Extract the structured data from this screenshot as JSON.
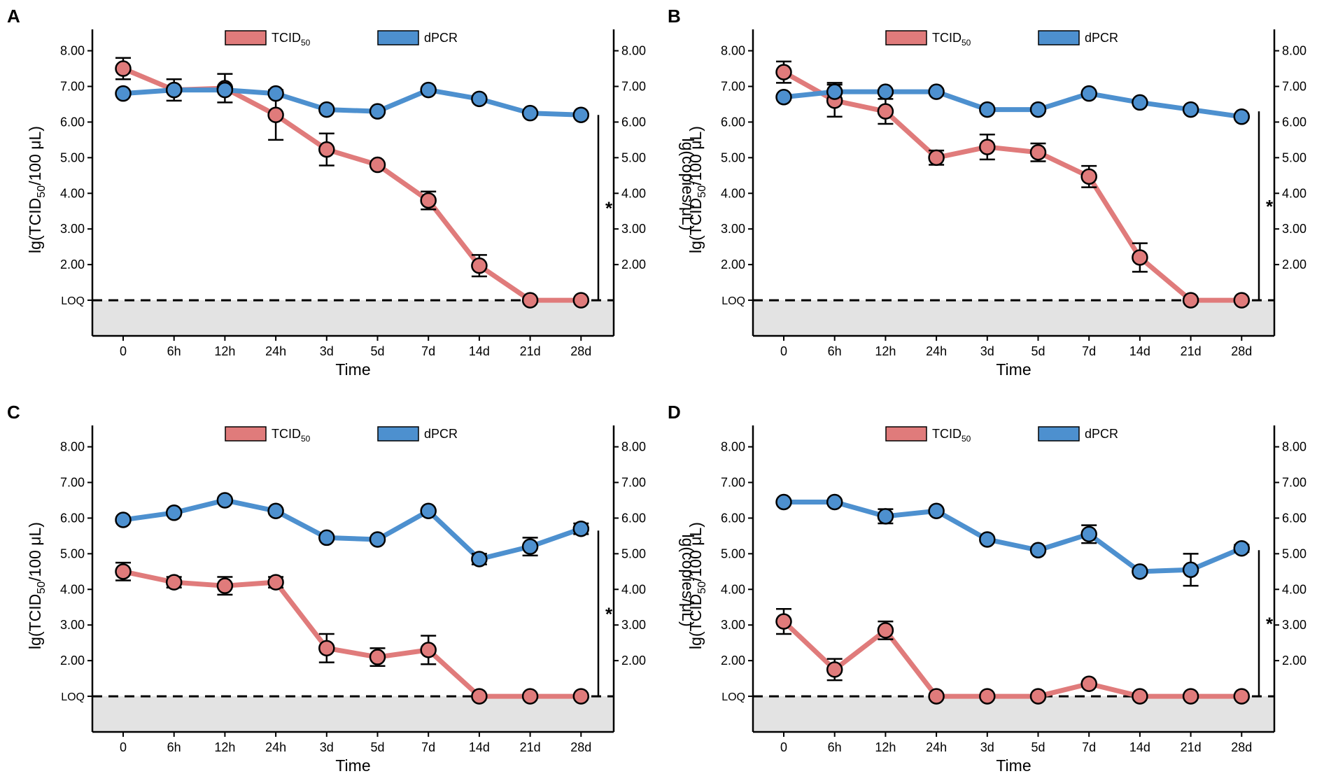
{
  "legend": {
    "tcid": "TCID",
    "tcid_sub": "50",
    "dpcr": "dPCR"
  },
  "colors": {
    "tcid": "#e07b7b",
    "dpcr": "#4d90cf",
    "loq_fill": "#e3e3e3",
    "axis": "#000000"
  },
  "axes": {
    "ylabel_left_pre": "lg(TCID",
    "ylabel_left_sub": "50",
    "ylabel_left_post": "/100 μL)",
    "ylabel_right": "lg(copies/μL)",
    "xlabel": "Time",
    "loq_label": "LOQ",
    "significance": "*"
  },
  "chart_data": [
    {
      "panel": "A",
      "type": "line",
      "categories": [
        "0",
        "6h",
        "12h",
        "24h",
        "3d",
        "5d",
        "7d",
        "14d",
        "21d",
        "28d"
      ],
      "ylim": [
        0,
        8.6
      ],
      "y_ticks": [
        "8.00",
        "7.00",
        "6.00",
        "5.00",
        "4.00",
        "3.00",
        "2.00"
      ],
      "loq_value": 1.0,
      "series": [
        {
          "name": "TCID50",
          "values": [
            7.5,
            6.9,
            6.95,
            6.2,
            5.23,
            4.8,
            3.8,
            1.97,
            1.0,
            1.0
          ],
          "errors": [
            0.3,
            0.3,
            0.4,
            0.7,
            0.45,
            0.0,
            0.25,
            0.3,
            0.0,
            0.0
          ]
        },
        {
          "name": "dPCR",
          "values": [
            6.8,
            6.9,
            6.9,
            6.8,
            6.35,
            6.3,
            6.9,
            6.65,
            6.25,
            6.2
          ],
          "errors": [
            0,
            0,
            0,
            0,
            0,
            0,
            0,
            0,
            0,
            0
          ]
        }
      ],
      "sig_bracket": [
        1.0,
        6.2
      ]
    },
    {
      "panel": "B",
      "type": "line",
      "categories": [
        "0",
        "6h",
        "12h",
        "24h",
        "3d",
        "5d",
        "7d",
        "14d",
        "21d",
        "28d"
      ],
      "ylim": [
        0,
        8.6
      ],
      "y_ticks": [
        "8.00",
        "7.00",
        "6.00",
        "5.00",
        "4.00",
        "3.00",
        "2.00"
      ],
      "loq_value": 1.0,
      "series": [
        {
          "name": "TCID50",
          "values": [
            7.4,
            6.6,
            6.3,
            5.0,
            5.3,
            5.15,
            4.47,
            2.2,
            1.0,
            1.0
          ],
          "errors": [
            0.3,
            0.45,
            0.35,
            0.2,
            0.35,
            0.25,
            0.3,
            0.4,
            0.0,
            0.0
          ]
        },
        {
          "name": "dPCR",
          "values": [
            6.7,
            6.85,
            6.85,
            6.85,
            6.35,
            6.35,
            6.8,
            6.55,
            6.35,
            6.15
          ],
          "errors": [
            0,
            0.25,
            0,
            0,
            0,
            0,
            0,
            0,
            0,
            0
          ]
        }
      ],
      "sig_bracket": [
        1.0,
        6.3
      ]
    },
    {
      "panel": "C",
      "type": "line",
      "categories": [
        "0",
        "6h",
        "12h",
        "24h",
        "3d",
        "5d",
        "7d",
        "14d",
        "21d",
        "28d"
      ],
      "ylim": [
        0,
        8.6
      ],
      "y_ticks": [
        "8.00",
        "7.00",
        "6.00",
        "5.00",
        "4.00",
        "3.00",
        "2.00"
      ],
      "loq_value": 1.0,
      "series": [
        {
          "name": "TCID50",
          "values": [
            4.5,
            4.2,
            4.1,
            4.2,
            2.35,
            2.1,
            2.3,
            1.0,
            1.0,
            1.0
          ],
          "errors": [
            0.25,
            0.15,
            0.25,
            0.15,
            0.4,
            0.25,
            0.4,
            0.0,
            0.0,
            0.0
          ]
        },
        {
          "name": "dPCR",
          "values": [
            5.95,
            6.15,
            6.5,
            6.2,
            5.45,
            5.4,
            6.2,
            4.85,
            5.2,
            5.7
          ],
          "errors": [
            0,
            0,
            0,
            0,
            0,
            0,
            0,
            0.15,
            0.25,
            0.15
          ]
        }
      ],
      "sig_bracket": [
        1.0,
        5.65
      ]
    },
    {
      "panel": "D",
      "type": "line",
      "categories": [
        "0",
        "6h",
        "12h",
        "24h",
        "3d",
        "5d",
        "7d",
        "14d",
        "21d",
        "28d"
      ],
      "ylim": [
        0,
        8.6
      ],
      "y_ticks": [
        "8.00",
        "7.00",
        "6.00",
        "5.00",
        "4.00",
        "3.00",
        "2.00"
      ],
      "loq_value": 1.0,
      "series": [
        {
          "name": "TCID50",
          "values": [
            3.1,
            1.75,
            2.85,
            1.0,
            1.0,
            1.0,
            1.35,
            1.0,
            1.0,
            1.0
          ],
          "errors": [
            0.35,
            0.3,
            0.25,
            0.0,
            0.0,
            0.0,
            0.0,
            0.0,
            0.0,
            0.0
          ]
        },
        {
          "name": "dPCR",
          "values": [
            6.45,
            6.45,
            6.05,
            6.2,
            5.4,
            5.1,
            5.55,
            4.5,
            4.55,
            5.15
          ],
          "errors": [
            0,
            0,
            0.2,
            0,
            0,
            0,
            0.25,
            0,
            0.45,
            0.1
          ]
        }
      ],
      "sig_bracket": [
        1.0,
        5.1
      ]
    }
  ]
}
